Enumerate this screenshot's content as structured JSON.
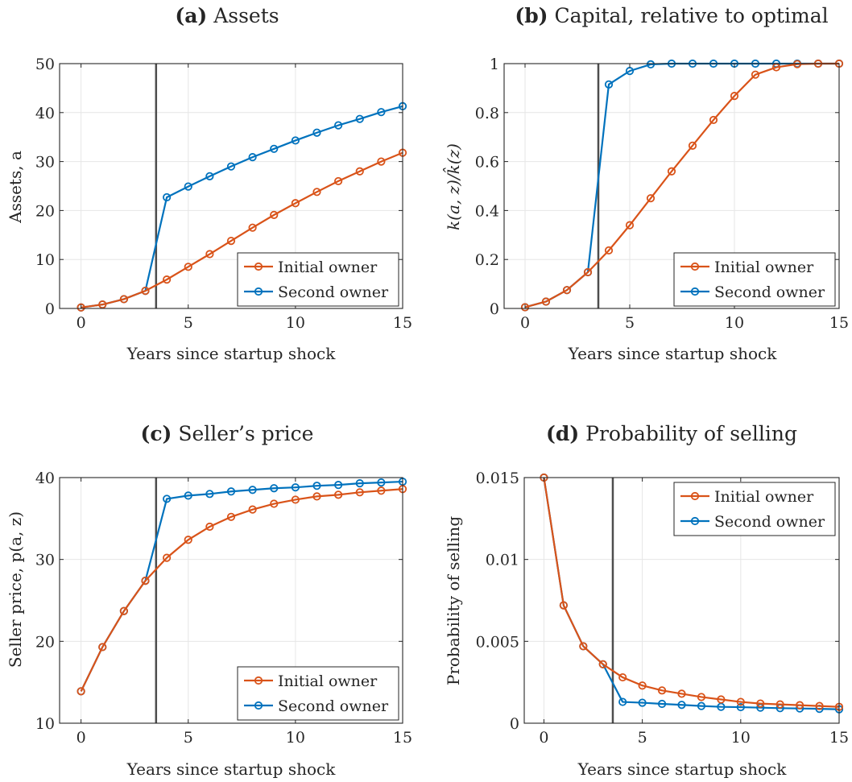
{
  "colors": {
    "initial": "#D95319",
    "second": "#0072BD",
    "vline": "#4d4d4d",
    "axes": "#262626",
    "grid": "#e6e6e6"
  },
  "chart_data": [
    {
      "type": "line",
      "panel_label": "(a)",
      "title": "Assets",
      "xlabel": "Years since startup shock",
      "ylabel": "Assets, a",
      "xlim": [
        -1,
        15
      ],
      "ylim": [
        0,
        50
      ],
      "xticks": [
        0,
        5,
        10,
        15
      ],
      "xtick_labels": [
        "0",
        "5",
        "10",
        "15"
      ],
      "yticks": [
        0,
        10,
        20,
        30,
        40,
        50
      ],
      "ytick_labels": [
        "0",
        "10",
        "20",
        "30",
        "40",
        "50"
      ],
      "grid": true,
      "legend_position": "lower-right",
      "vline_x": 3.5,
      "series": [
        {
          "name": "Initial owner",
          "color": "#D95319",
          "x": [
            0,
            1,
            2,
            3,
            4,
            5,
            6,
            7,
            8,
            9,
            10,
            11,
            12,
            13,
            14,
            15
          ],
          "y": [
            0.2,
            0.8,
            1.9,
            3.6,
            5.9,
            8.5,
            11.1,
            13.8,
            16.5,
            19.1,
            21.5,
            23.8,
            26.0,
            28.0,
            30.0,
            31.8
          ]
        },
        {
          "name": "Second owner",
          "color": "#0072BD",
          "x": [
            0,
            1,
            2,
            3,
            4,
            5,
            6,
            7,
            8,
            9,
            10,
            11,
            12,
            13,
            14,
            15
          ],
          "y": [
            0.2,
            0.8,
            1.9,
            3.6,
            22.7,
            24.9,
            27.0,
            29.0,
            30.9,
            32.6,
            34.3,
            35.9,
            37.4,
            38.7,
            40.1,
            41.3
          ]
        }
      ]
    },
    {
      "type": "line",
      "panel_label": "(b)",
      "title": "Capital, relative to optimal",
      "xlabel": "Years since startup shock",
      "ylabel": "k(a, z)/k̂(z)",
      "xlim": [
        -1,
        15
      ],
      "ylim": [
        0,
        1
      ],
      "xticks": [
        0,
        5,
        10,
        15
      ],
      "xtick_labels": [
        "0",
        "5",
        "10",
        "15"
      ],
      "yticks": [
        0,
        0.2,
        0.4,
        0.6,
        0.8,
        1
      ],
      "ytick_labels": [
        "0",
        "0.2",
        "0.4",
        "0.6",
        "0.8",
        "1"
      ],
      "grid": true,
      "legend_position": "lower-right",
      "vline_x": 3.5,
      "series": [
        {
          "name": "Initial owner",
          "color": "#D95319",
          "x": [
            0,
            1,
            2,
            3,
            4,
            5,
            6,
            7,
            8,
            9,
            10,
            11,
            12,
            13,
            14,
            15
          ],
          "y": [
            0.005,
            0.028,
            0.075,
            0.148,
            0.237,
            0.34,
            0.45,
            0.56,
            0.665,
            0.77,
            0.868,
            0.955,
            0.985,
            0.998,
            1.0,
            1.0
          ]
        },
        {
          "name": "Second owner",
          "color": "#0072BD",
          "x": [
            0,
            1,
            2,
            3,
            4,
            5,
            6,
            7,
            8,
            9,
            10,
            11,
            12,
            13,
            14,
            15
          ],
          "y": [
            0.005,
            0.028,
            0.075,
            0.148,
            0.915,
            0.97,
            0.997,
            1.0,
            1.0,
            1.0,
            1.0,
            1.0,
            1.0,
            1.0,
            1.0,
            1.0
          ]
        }
      ]
    },
    {
      "type": "line",
      "panel_label": "(c)",
      "title": "Seller’s price",
      "xlabel": "Years since startup shock",
      "ylabel": "Seller price, p(a, z)",
      "xlim": [
        -1,
        15
      ],
      "ylim": [
        10,
        40
      ],
      "xticks": [
        0,
        5,
        10,
        15
      ],
      "xtick_labels": [
        "0",
        "5",
        "10",
        "15"
      ],
      "yticks": [
        10,
        20,
        30,
        40
      ],
      "ytick_labels": [
        "10",
        "20",
        "30",
        "40"
      ],
      "grid": true,
      "legend_position": "lower-right",
      "vline_x": 3.5,
      "series": [
        {
          "name": "Initial owner",
          "color": "#D95319",
          "x": [
            0,
            1,
            2,
            3,
            4,
            5,
            6,
            7,
            8,
            9,
            10,
            11,
            12,
            13,
            14,
            15
          ],
          "y": [
            13.9,
            19.3,
            23.7,
            27.4,
            30.2,
            32.4,
            34.0,
            35.2,
            36.1,
            36.8,
            37.3,
            37.7,
            37.9,
            38.2,
            38.4,
            38.6
          ]
        },
        {
          "name": "Second owner",
          "color": "#0072BD",
          "x": [
            0,
            1,
            2,
            3,
            4,
            5,
            6,
            7,
            8,
            9,
            10,
            11,
            12,
            13,
            14,
            15
          ],
          "y": [
            13.9,
            19.3,
            23.7,
            27.4,
            37.4,
            37.8,
            38.0,
            38.3,
            38.5,
            38.7,
            38.8,
            39.0,
            39.1,
            39.3,
            39.4,
            39.5
          ]
        }
      ]
    },
    {
      "type": "line",
      "panel_label": "(d)",
      "title": "Probability of selling",
      "xlabel": "Years since startup shock",
      "ylabel": "Probability of selling",
      "xlim": [
        -1,
        15
      ],
      "ylim": [
        0,
        0.015
      ],
      "xticks": [
        0,
        5,
        10,
        15
      ],
      "xtick_labels": [
        "0",
        "5",
        "10",
        "15"
      ],
      "yticks": [
        0,
        0.005,
        0.01,
        0.015
      ],
      "ytick_labels": [
        "0",
        "0.005",
        "0.01",
        "0.015"
      ],
      "grid": true,
      "legend_position": "top-right",
      "vline_x": 3.5,
      "series": [
        {
          "name": "Initial owner",
          "color": "#D95319",
          "x": [
            0,
            1,
            2,
            3,
            4,
            5,
            6,
            7,
            8,
            9,
            10,
            11,
            12,
            13,
            14,
            15
          ],
          "y": [
            0.015,
            0.0072,
            0.0047,
            0.0036,
            0.0028,
            0.0023,
            0.002,
            0.0018,
            0.0016,
            0.00145,
            0.0013,
            0.0012,
            0.00115,
            0.0011,
            0.00105,
            0.001
          ]
        },
        {
          "name": "Second owner",
          "color": "#0072BD",
          "x": [
            0,
            1,
            2,
            3,
            4,
            5,
            6,
            7,
            8,
            9,
            10,
            11,
            12,
            13,
            14,
            15
          ],
          "y": [
            0.015,
            0.0072,
            0.0047,
            0.0036,
            0.0013,
            0.00125,
            0.00118,
            0.00112,
            0.00105,
            0.001,
            0.00098,
            0.00095,
            0.00092,
            0.0009,
            0.00088,
            0.00085
          ]
        }
      ]
    }
  ]
}
